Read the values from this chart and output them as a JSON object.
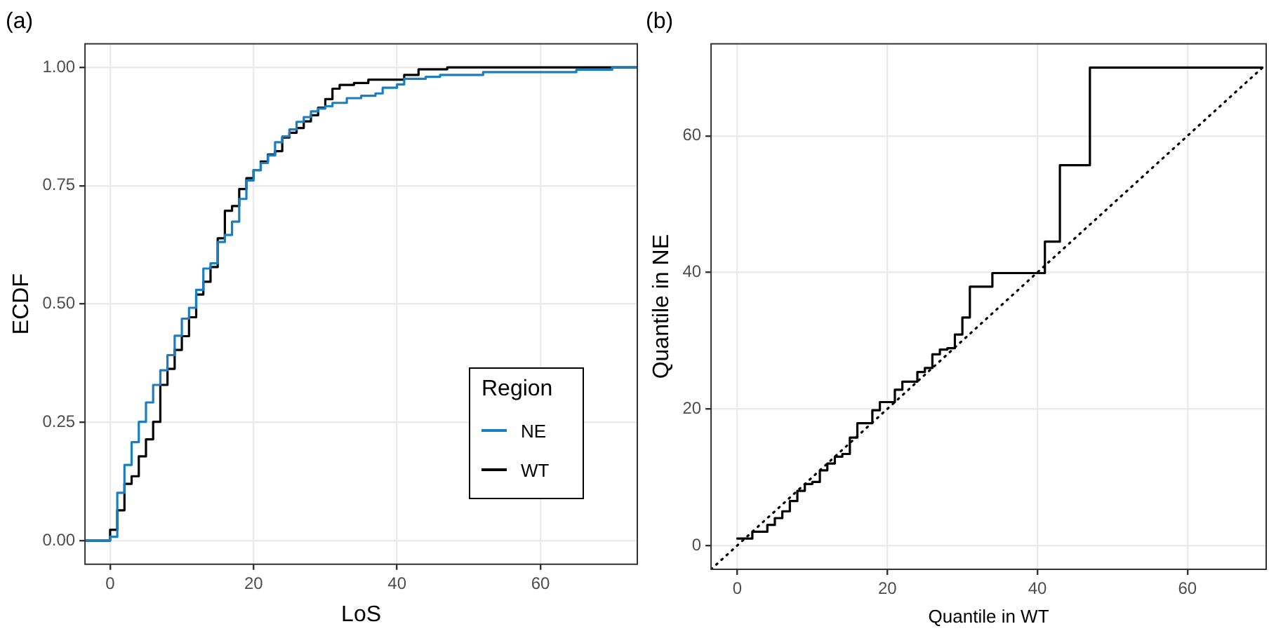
{
  "chart_data": [
    {
      "type": "step",
      "title": "(a)",
      "xlabel": "LoS",
      "ylabel": "ECDF",
      "legend_title": "Region",
      "legend": "bottom right",
      "grid": true,
      "xlim": [
        -3.5,
        73.5
      ],
      "xticks": [
        0,
        20,
        40,
        60
      ],
      "ylim": [
        -0.05,
        1.05
      ],
      "yticks": [
        {
          "value": 0,
          "label": "0.00"
        },
        {
          "value": 0.25,
          "label": "0.25"
        },
        {
          "value": 0.5,
          "label": "0.50"
        },
        {
          "value": 0.75,
          "label": "0.75"
        },
        {
          "value": 1,
          "label": "1.00"
        }
      ],
      "series": [
        {
          "name": "NE",
          "color": "#1a7ec2",
          "x": [
            -3.5,
            0,
            1,
            2,
            3,
            4,
            5,
            6,
            7,
            8,
            9,
            10,
            11,
            12,
            13,
            14,
            15,
            16,
            17,
            18,
            19,
            20,
            21,
            22,
            23,
            24,
            25,
            26,
            27,
            28,
            29,
            30,
            31,
            33,
            35,
            37,
            38,
            40,
            41,
            44,
            46,
            52,
            65,
            70,
            73.5
          ],
          "values": [
            0,
            0.008,
            0.101,
            0.16,
            0.208,
            0.251,
            0.292,
            0.329,
            0.36,
            0.392,
            0.433,
            0.469,
            0.492,
            0.53,
            0.575,
            0.586,
            0.631,
            0.646,
            0.674,
            0.722,
            0.761,
            0.783,
            0.798,
            0.814,
            0.842,
            0.854,
            0.869,
            0.885,
            0.895,
            0.907,
            0.913,
            0.918,
            0.925,
            0.935,
            0.94,
            0.945,
            0.957,
            0.964,
            0.976,
            0.98,
            0.984,
            0.99,
            0.995,
            1,
            1
          ]
        },
        {
          "name": "WT",
          "color": "#000000",
          "x": [
            -3.5,
            0,
            1,
            2,
            3,
            4,
            5,
            6,
            7,
            8,
            9,
            10,
            11,
            12,
            13,
            14,
            15,
            16,
            17,
            18,
            19,
            20,
            21,
            22,
            23,
            24,
            25,
            26,
            27,
            28,
            29,
            30,
            31,
            32,
            34,
            36,
            41,
            43,
            47,
            73.5
          ],
          "values": [
            0,
            0.023,
            0.064,
            0.12,
            0.136,
            0.178,
            0.214,
            0.251,
            0.329,
            0.363,
            0.403,
            0.432,
            0.472,
            0.52,
            0.547,
            0.578,
            0.639,
            0.697,
            0.707,
            0.743,
            0.766,
            0.783,
            0.801,
            0.816,
            0.823,
            0.852,
            0.862,
            0.872,
            0.886,
            0.899,
            0.915,
            0.933,
            0.955,
            0.963,
            0.967,
            0.974,
            0.984,
            0.996,
            1,
            1
          ]
        }
      ]
    },
    {
      "type": "step",
      "title": "(b)",
      "xlabel": "Quantile in WT",
      "ylabel": "Quantile in NE",
      "grid": true,
      "xlim": [
        -3.5,
        70.5
      ],
      "xticks": [
        0,
        20,
        40,
        60
      ],
      "ylim": [
        -3.5,
        73.5
      ],
      "yticks": [
        0,
        20,
        40,
        60
      ],
      "series": [
        {
          "color": "#000000",
          "x": [
            0,
            2,
            4,
            5,
            6,
            7,
            8,
            9,
            10,
            11,
            12,
            13,
            14,
            15,
            16,
            18,
            19,
            21,
            22,
            24,
            25,
            26,
            27,
            28,
            29,
            30,
            31,
            34,
            41,
            43,
            47,
            70
          ],
          "values": [
            1,
            2,
            3,
            4,
            5,
            6.5,
            8,
            9,
            9.3,
            11,
            12,
            13,
            13.4,
            15.8,
            17.9,
            19.8,
            21,
            22.8,
            24,
            25.4,
            26,
            28,
            28.7,
            28.9,
            30.9,
            33.4,
            37.9,
            39.9,
            44.5,
            55.7,
            70,
            70
          ]
        },
        {
          "type": "line",
          "line_style": "dotted",
          "color": "#000000",
          "x": [
            -3.5,
            70.5
          ],
          "values": [
            -3.5,
            70.5
          ]
        }
      ]
    }
  ]
}
